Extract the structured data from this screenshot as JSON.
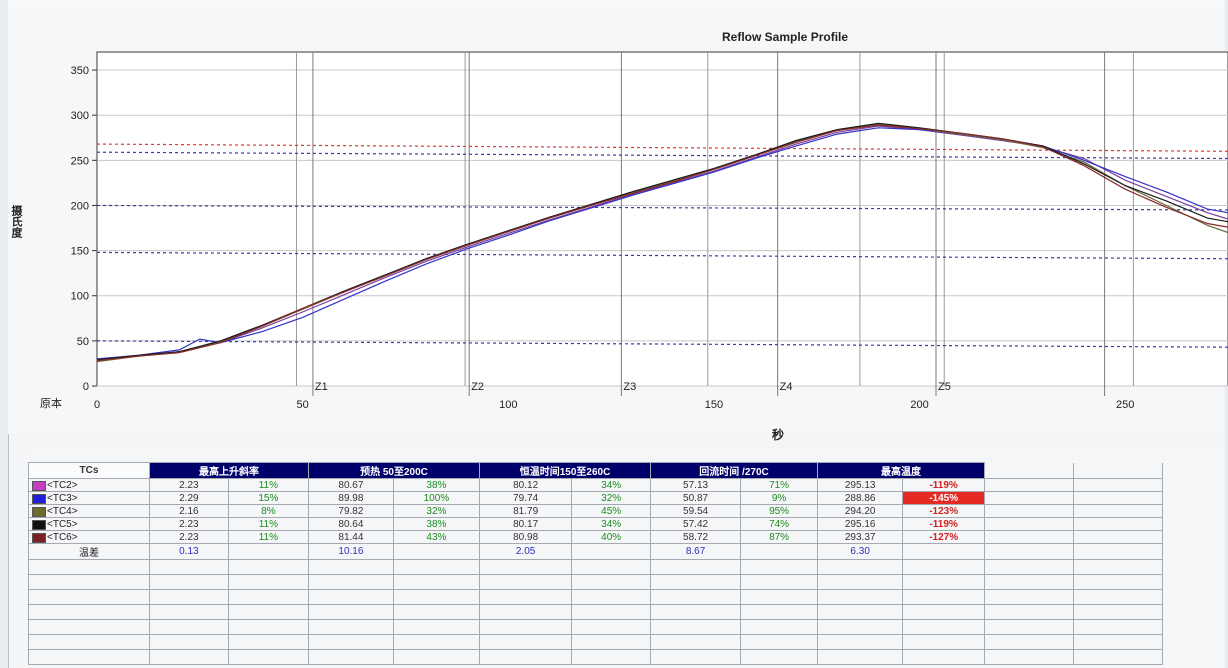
{
  "chart_data": {
    "type": "line",
    "title": "Reflow Sample Profile",
    "ylabel": "摄氏度",
    "xlabel": "秒",
    "origin_label": "原本",
    "xlim": [
      0,
      275
    ],
    "ylim": [
      0,
      370
    ],
    "x_ticks": [
      0,
      50,
      100,
      150,
      200,
      250
    ],
    "y_ticks": [
      0,
      50,
      100,
      150,
      200,
      250,
      300,
      350
    ],
    "zones": [
      {
        "label": "Z1",
        "x": 52.5,
        "pair_x": 48.5
      },
      {
        "label": "Z2",
        "x": 90.5,
        "pair_x": 89.5
      },
      {
        "label": "Z3",
        "x": 127.5,
        "pair_x": 148.5
      },
      {
        "label": "Z4",
        "x": 165.5,
        "pair_x": 185.5
      },
      {
        "label": "Z5",
        "x": 204,
        "pair_x": 206
      },
      {
        "label": "",
        "x": 245,
        "pair_x": 252
      }
    ],
    "reference_lines": [
      {
        "color": "#e03a3a",
        "y_start": 268,
        "y_end": 260
      },
      {
        "color": "#3a3aa8",
        "y_start": 259,
        "y_end": 252
      },
      {
        "color": "#3a3aa8",
        "y_start": 200,
        "y_end": 195
      },
      {
        "color": "#3a3aa8",
        "y_start": 148,
        "y_end": 141
      },
      {
        "color": "#3a3aa8",
        "y_start": 50,
        "y_end": 43
      }
    ],
    "series": [
      {
        "name": "<TC2>",
        "color": "#7a3fa0",
        "x": [
          0,
          10,
          20,
          30,
          40,
          50,
          60,
          70,
          80,
          90,
          100,
          110,
          120,
          130,
          140,
          150,
          160,
          170,
          180,
          190,
          200,
          210,
          220,
          230,
          240,
          250,
          260,
          270,
          275
        ],
        "y": [
          28,
          33,
          38,
          48,
          64,
          82,
          101,
          120,
          138,
          154,
          169,
          184,
          198,
          212,
          225,
          238,
          253,
          268,
          281,
          288,
          284,
          278,
          272,
          265,
          252,
          228,
          210,
          192,
          185
        ]
      },
      {
        "name": "<TC3>",
        "color": "#3333c8",
        "x": [
          0,
          10,
          20,
          25,
          30,
          40,
          50,
          60,
          70,
          80,
          90,
          100,
          110,
          120,
          130,
          140,
          150,
          160,
          170,
          180,
          190,
          200,
          210,
          220,
          230,
          240,
          250,
          260,
          270,
          275
        ],
        "y": [
          30,
          34,
          40,
          52,
          48,
          60,
          76,
          96,
          116,
          135,
          152,
          167,
          183,
          197,
          211,
          224,
          237,
          252,
          266,
          279,
          286,
          284,
          279,
          273,
          266,
          250,
          232,
          215,
          196,
          192
        ]
      },
      {
        "name": "<TC4>",
        "color": "#6b6b3a",
        "x": [
          0,
          10,
          20,
          30,
          40,
          50,
          60,
          70,
          80,
          90,
          100,
          110,
          120,
          130,
          140,
          150,
          160,
          170,
          180,
          190,
          200,
          210,
          220,
          230,
          240,
          250,
          260,
          270,
          275
        ],
        "y": [
          27,
          33,
          38,
          49,
          66,
          85,
          104,
          122,
          140,
          156,
          171,
          186,
          200,
          214,
          227,
          240,
          255,
          271,
          283,
          290,
          285,
          279,
          273,
          264,
          248,
          222,
          200,
          178,
          170
        ]
      },
      {
        "name": "<TC5>",
        "color": "#1a1a1a",
        "x": [
          0,
          10,
          20,
          30,
          40,
          50,
          60,
          70,
          80,
          90,
          100,
          110,
          120,
          130,
          140,
          150,
          160,
          170,
          180,
          190,
          200,
          210,
          220,
          230,
          240,
          250,
          260,
          270,
          275
        ],
        "y": [
          29,
          34,
          38,
          50,
          67,
          86,
          105,
          123,
          141,
          157,
          172,
          187,
          201,
          215,
          228,
          241,
          256,
          272,
          284,
          291,
          286,
          280,
          274,
          266,
          246,
          222,
          205,
          186,
          182
        ]
      },
      {
        "name": "<TC6>",
        "color": "#8a2a2a",
        "x": [
          0,
          10,
          20,
          30,
          40,
          50,
          60,
          70,
          80,
          90,
          100,
          110,
          120,
          130,
          140,
          150,
          160,
          170,
          180,
          190,
          200,
          210,
          220,
          230,
          240,
          250,
          260,
          270,
          275
        ],
        "y": [
          28,
          33,
          37,
          48,
          66,
          86,
          104,
          122,
          140,
          156,
          171,
          186,
          200,
          213,
          226,
          240,
          255,
          270,
          283,
          289,
          285,
          280,
          274,
          265,
          244,
          218,
          198,
          180,
          176
        ]
      }
    ]
  },
  "table": {
    "headers": {
      "tcs": "TCs",
      "max_slope": "最高上升斜率",
      "preheat": "预热 50至200C",
      "soak": "恒温时间150至260C",
      "reflow": "回流时间 /270C",
      "peak": "最高温度"
    },
    "rows": [
      {
        "tc": "<TC2>",
        "swatch": "#c43cc4",
        "slope": "2.23",
        "slope_pct": "11%",
        "preheat": "80.67",
        "preheat_pct": "38%",
        "soak": "80.12",
        "soak_pct": "34%",
        "reflow": "57.13",
        "reflow_pct": "71%",
        "peak": "295.13",
        "peak_pct": "-119%",
        "peak_alert": false
      },
      {
        "tc": "<TC3>",
        "swatch": "#2020d8",
        "slope": "2.29",
        "slope_pct": "15%",
        "preheat": "89.98",
        "preheat_pct": "100%",
        "soak": "79.74",
        "soak_pct": "32%",
        "reflow": "50.87",
        "reflow_pct": "9%",
        "peak": "288.86",
        "peak_pct": "-145%",
        "peak_alert": true
      },
      {
        "tc": "<TC4>",
        "swatch": "#6a6a2a",
        "slope": "2.16",
        "slope_pct": "8%",
        "preheat": "79.82",
        "preheat_pct": "32%",
        "soak": "81.79",
        "soak_pct": "45%",
        "reflow": "59.54",
        "reflow_pct": "95%",
        "peak": "294.20",
        "peak_pct": "-123%",
        "peak_alert": false
      },
      {
        "tc": "<TC5>",
        "swatch": "#111111",
        "slope": "2.23",
        "slope_pct": "11%",
        "preheat": "80.64",
        "preheat_pct": "38%",
        "soak": "80.17",
        "soak_pct": "34%",
        "reflow": "57.42",
        "reflow_pct": "74%",
        "peak": "295.16",
        "peak_pct": "-119%",
        "peak_alert": false
      },
      {
        "tc": "<TC6>",
        "swatch": "#7a2020",
        "slope": "2.23",
        "slope_pct": "11%",
        "preheat": "81.44",
        "preheat_pct": "43%",
        "soak": "80.98",
        "soak_pct": "40%",
        "reflow": "58.72",
        "reflow_pct": "87%",
        "peak": "293.37",
        "peak_pct": "-127%",
        "peak_alert": false
      }
    ],
    "delta": {
      "label": "温差",
      "slope": "0.13",
      "preheat": "10.16",
      "soak": "2.05",
      "reflow": "8.67",
      "peak": "6.30"
    }
  }
}
